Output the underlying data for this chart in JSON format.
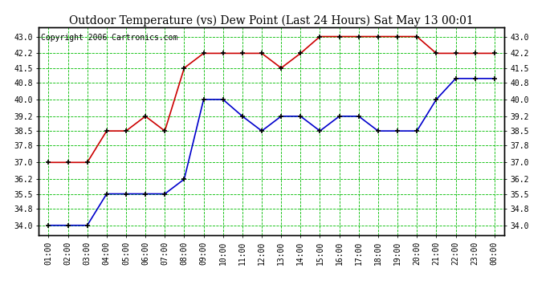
{
  "title": "Outdoor Temperature (vs) Dew Point (Last 24 Hours) Sat May 13 00:01",
  "copyright": "Copyright 2006 Cartronics.com",
  "x_labels": [
    "01:00",
    "02:00",
    "03:00",
    "04:00",
    "05:00",
    "06:00",
    "07:00",
    "08:00",
    "09:00",
    "10:00",
    "11:00",
    "12:00",
    "13:00",
    "14:00",
    "15:00",
    "16:00",
    "17:00",
    "18:00",
    "19:00",
    "20:00",
    "21:00",
    "22:00",
    "23:00",
    "00:00"
  ],
  "red_line": [
    37.0,
    37.0,
    37.0,
    38.5,
    38.5,
    39.2,
    38.5,
    41.5,
    42.2,
    42.2,
    42.2,
    42.2,
    41.5,
    42.2,
    43.0,
    43.0,
    43.0,
    43.0,
    43.0,
    43.0,
    42.2,
    42.2,
    42.2,
    42.2
  ],
  "blue_line": [
    34.0,
    34.0,
    34.0,
    35.5,
    35.5,
    35.5,
    35.5,
    36.2,
    40.0,
    40.0,
    39.2,
    38.5,
    39.2,
    39.2,
    38.5,
    39.2,
    39.2,
    38.5,
    38.5,
    38.5,
    40.0,
    41.0,
    41.0,
    41.0
  ],
  "y_ticks": [
    34.0,
    34.8,
    35.5,
    36.2,
    37.0,
    37.8,
    38.5,
    39.2,
    40.0,
    40.8,
    41.5,
    42.2,
    43.0
  ],
  "ylim": [
    33.55,
    43.45
  ],
  "background_color": "#ffffff",
  "plot_bg_color": "#ffffff",
  "grid_color": "#00bb00",
  "red_color": "#cc0000",
  "blue_color": "#0000cc",
  "marker_color": "#000000",
  "title_fontsize": 10,
  "tick_fontsize": 7,
  "copyright_fontsize": 7
}
